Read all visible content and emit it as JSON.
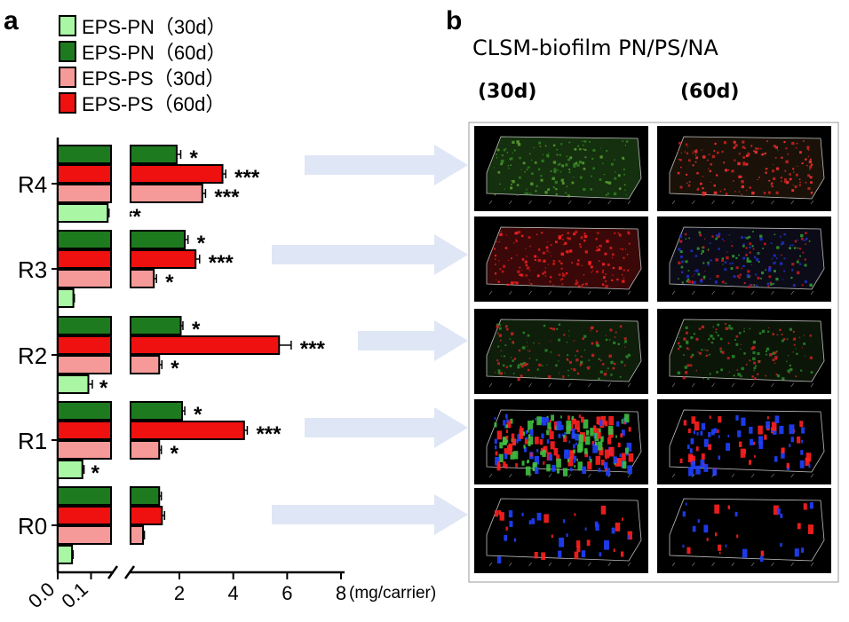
{
  "panel_a_label": "a",
  "panel_b_label": "b",
  "panel_b": {
    "title": "CLSM-biofilm PN/PS/NA",
    "col_labels": [
      "(30d)",
      "(60d)"
    ]
  },
  "colors": {
    "eps_pn_30d": "#a9f7a4",
    "eps_pn_60d": "#1e7a1e",
    "eps_ps_30d": "#f59a98",
    "eps_ps_60d": "#ef1010",
    "arrow": "#dfe6f5"
  },
  "chart_data": {
    "type": "bar",
    "orientation": "horizontal",
    "categories": [
      "R4",
      "R3",
      "R2",
      "R1",
      "R0"
    ],
    "series": [
      {
        "name": "EPS-PN (60d)",
        "color": "#1e7a1e",
        "values": [
          1.9,
          2.2,
          2.05,
          2.1,
          1.25
        ],
        "errors": [
          0.15,
          0.12,
          0.08,
          0.1,
          0.08
        ],
        "sig": [
          "*",
          "*",
          "*",
          "*",
          ""
        ]
      },
      {
        "name": "EPS-PS (60d)",
        "color": "#ef1010",
        "values": [
          3.6,
          2.6,
          5.7,
          4.4,
          1.35
        ],
        "errors": [
          0.12,
          0.15,
          0.45,
          0.12,
          0.1
        ],
        "sig": [
          "***",
          "***",
          "***",
          "***",
          ""
        ]
      },
      {
        "name": "EPS-PS (30d)",
        "color": "#f59a98",
        "values": [
          2.85,
          1.05,
          1.25,
          1.25,
          0.65
        ],
        "errors": [
          0.12,
          0.1,
          0.1,
          0.08,
          0.05
        ],
        "sig": [
          "***",
          "*",
          "*",
          "*",
          ""
        ]
      },
      {
        "name": "EPS-PN (30d)",
        "color": "#a9f7a4",
        "values": [
          0.15,
          0.047,
          0.092,
          0.074,
          0.043
        ],
        "errors": [
          0.004,
          0.003,
          0.012,
          0.005,
          0.003
        ],
        "sig": [
          "***",
          "",
          "*",
          "*",
          ""
        ]
      }
    ],
    "legend": [
      {
        "label": "EPS-PN（30d）",
        "color": "#a9f7a4"
      },
      {
        "label": "EPS-PN（60d）",
        "color": "#1e7a1e"
      },
      {
        "label": "EPS-PS（30d）",
        "color": "#f59a98"
      },
      {
        "label": "EPS-PS（60d）",
        "color": "#ef1010"
      }
    ],
    "legend_position": "top-left",
    "x_axis": {
      "broken": true,
      "low_segment": {
        "range": [
          0,
          0.16
        ],
        "tick_values": [
          0.0,
          0.1
        ],
        "tick_labels": [
          "0.0",
          "0.1"
        ]
      },
      "high_segment": {
        "range": [
          0.16,
          8
        ],
        "tick_values": [
          2,
          4,
          6,
          8
        ],
        "tick_labels": [
          "2",
          "4",
          "6",
          "8"
        ]
      },
      "unit_label": "(mg/carrier)"
    },
    "grid": false
  }
}
